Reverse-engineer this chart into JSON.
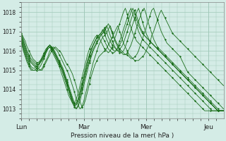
{
  "title": "Pression niveau de la mer( hPa )",
  "bg_color": "#d4ece6",
  "grid_color": "#a0c8b8",
  "line_color": "#1a6e1a",
  "ymin": 1012.5,
  "ymax": 1018.5,
  "yticks": [
    1013,
    1014,
    1015,
    1016,
    1017,
    1018
  ],
  "xtick_labels": [
    "Lun",
    "Mar",
    "Mer",
    "Jeu"
  ],
  "xtick_pos": [
    0,
    33,
    66,
    99
  ],
  "n_points": 108,
  "series": [
    [
      1016.8,
      1016.5,
      1016.2,
      1015.9,
      1015.7,
      1015.5,
      1015.4,
      1015.3,
      1015.2,
      1015.1,
      1015.0,
      1015.0,
      1015.2,
      1015.4,
      1015.6,
      1015.8,
      1016.0,
      1016.1,
      1016.2,
      1016.1,
      1016.0,
      1015.9,
      1015.7,
      1015.5,
      1015.3,
      1015.2,
      1015.0,
      1014.8,
      1014.5,
      1014.2,
      1013.8,
      1013.4,
      1013.1,
      1013.2,
      1013.5,
      1013.9,
      1014.3,
      1014.7,
      1015.0,
      1015.3,
      1015.5,
      1015.7,
      1015.8,
      1015.9,
      1016.0,
      1016.1,
      1016.3,
      1016.5,
      1016.7,
      1016.9,
      1017.1,
      1017.3,
      1017.0,
      1016.7,
      1016.4,
      1016.2,
      1016.0,
      1015.8,
      1015.7,
      1015.6,
      1015.5,
      1015.5,
      1015.5,
      1015.6,
      1015.7,
      1015.8,
      1016.0,
      1016.2,
      1016.4,
      1016.8,
      1017.0,
      1017.3,
      1017.6,
      1017.9,
      1018.1,
      1017.9,
      1017.7,
      1017.5,
      1017.3,
      1017.1,
      1016.9,
      1016.8,
      1016.7,
      1016.6,
      1016.5,
      1016.4,
      1016.3,
      1016.2,
      1016.1,
      1016.0,
      1015.9,
      1015.8,
      1015.7,
      1015.6,
      1015.5,
      1015.4,
      1015.3,
      1015.2,
      1015.1,
      1015.0,
      1014.9,
      1014.8,
      1014.7,
      1014.6,
      1014.5,
      1014.4,
      1014.3,
      1014.2
    ],
    [
      1016.7,
      1016.3,
      1016.0,
      1015.7,
      1015.5,
      1015.4,
      1015.3,
      1015.2,
      1015.1,
      1015.0,
      1015.0,
      1015.1,
      1015.3,
      1015.5,
      1015.7,
      1016.0,
      1016.1,
      1016.2,
      1016.1,
      1016.0,
      1015.8,
      1015.6,
      1015.4,
      1015.2,
      1015.0,
      1014.8,
      1014.5,
      1014.2,
      1013.9,
      1013.5,
      1013.2,
      1013.0,
      1013.1,
      1013.4,
      1013.8,
      1014.2,
      1014.6,
      1015.0,
      1015.4,
      1015.7,
      1016.0,
      1016.3,
      1016.5,
      1016.7,
      1016.8,
      1016.9,
      1017.1,
      1017.3,
      1017.0,
      1016.7,
      1016.5,
      1016.3,
      1016.1,
      1016.0,
      1015.9,
      1015.8,
      1015.8,
      1015.7,
      1015.6,
      1015.6,
      1015.7,
      1015.8,
      1016.0,
      1016.3,
      1016.6,
      1016.9,
      1017.2,
      1017.5,
      1017.8,
      1018.1,
      1018.2,
      1017.9,
      1017.6,
      1017.3,
      1017.0,
      1016.8,
      1016.6,
      1016.4,
      1016.3,
      1016.2,
      1016.1,
      1016.0,
      1015.9,
      1015.8,
      1015.7,
      1015.5,
      1015.3,
      1015.1,
      1014.9,
      1014.8,
      1014.7,
      1014.6,
      1014.5,
      1014.4,
      1014.3,
      1014.2,
      1014.1,
      1014.0,
      1013.9,
      1013.8,
      1013.7,
      1013.6,
      1013.5,
      1013.4,
      1013.3,
      1013.2,
      1013.1,
      1013.0
    ],
    [
      1016.5,
      1016.1,
      1015.8,
      1015.5,
      1015.3,
      1015.1,
      1015.0,
      1015.0,
      1015.0,
      1015.1,
      1015.2,
      1015.4,
      1015.6,
      1015.9,
      1016.1,
      1016.2,
      1016.1,
      1016.0,
      1015.8,
      1015.6,
      1015.4,
      1015.2,
      1015.0,
      1014.7,
      1014.4,
      1014.1,
      1013.7,
      1013.4,
      1013.2,
      1013.0,
      1013.1,
      1013.4,
      1013.8,
      1014.2,
      1014.6,
      1015.0,
      1015.4,
      1015.7,
      1016.0,
      1016.2,
      1016.4,
      1016.6,
      1016.8,
      1016.9,
      1017.0,
      1017.2,
      1017.4,
      1017.2,
      1016.9,
      1016.7,
      1016.4,
      1016.2,
      1016.0,
      1015.9,
      1015.8,
      1015.8,
      1015.9,
      1016.1,
      1016.3,
      1016.6,
      1016.9,
      1017.2,
      1017.5,
      1017.8,
      1018.1,
      1018.2,
      1017.9,
      1017.5,
      1017.2,
      1016.9,
      1016.6,
      1016.4,
      1016.2,
      1016.1,
      1016.0,
      1015.9,
      1015.8,
      1015.7,
      1015.6,
      1015.5,
      1015.4,
      1015.3,
      1015.2,
      1015.1,
      1015.0,
      1014.9,
      1014.8,
      1014.7,
      1014.6,
      1014.5,
      1014.4,
      1014.3,
      1014.2,
      1014.1,
      1014.0,
      1013.9,
      1013.8,
      1013.7,
      1013.6,
      1013.5,
      1013.4,
      1013.3,
      1013.2,
      1013.1,
      1013.0,
      1012.9,
      1012.9,
      1012.9
    ],
    [
      1016.4,
      1016.0,
      1015.7,
      1015.4,
      1015.2,
      1015.0,
      1015.0,
      1015.0,
      1015.1,
      1015.2,
      1015.4,
      1015.6,
      1015.8,
      1016.0,
      1016.2,
      1016.3,
      1016.1,
      1015.9,
      1015.7,
      1015.5,
      1015.3,
      1015.1,
      1014.8,
      1014.5,
      1014.2,
      1013.9,
      1013.6,
      1013.3,
      1013.1,
      1013.0,
      1013.2,
      1013.6,
      1014.0,
      1014.4,
      1014.8,
      1015.2,
      1015.5,
      1015.8,
      1016.1,
      1016.3,
      1016.5,
      1016.7,
      1016.8,
      1016.9,
      1017.1,
      1017.3,
      1017.1,
      1016.8,
      1016.5,
      1016.3,
      1016.1,
      1016.0,
      1015.9,
      1015.9,
      1016.0,
      1016.2,
      1016.5,
      1016.8,
      1017.1,
      1017.4,
      1017.7,
      1018.0,
      1018.2,
      1017.9,
      1017.5,
      1017.2,
      1016.9,
      1016.7,
      1016.5,
      1016.4,
      1016.3,
      1016.2,
      1016.1,
      1016.0,
      1015.9,
      1015.8,
      1015.7,
      1015.6,
      1015.5,
      1015.4,
      1015.3,
      1015.2,
      1015.1,
      1015.0,
      1014.9,
      1014.8,
      1014.7,
      1014.6,
      1014.5,
      1014.4,
      1014.3,
      1014.2,
      1014.1,
      1014.0,
      1013.9,
      1013.8,
      1013.7,
      1013.6,
      1013.5,
      1013.4,
      1013.3,
      1013.2,
      1013.1,
      1013.0,
      1012.9,
      1012.9,
      1012.9,
      1012.9
    ],
    [
      1016.8,
      1016.6,
      1016.3,
      1016.0,
      1015.8,
      1015.6,
      1015.5,
      1015.4,
      1015.3,
      1015.3,
      1015.4,
      1015.5,
      1015.7,
      1015.9,
      1016.1,
      1016.2,
      1016.2,
      1016.1,
      1015.9,
      1015.7,
      1015.5,
      1015.3,
      1015.1,
      1014.8,
      1014.5,
      1014.2,
      1013.9,
      1013.6,
      1013.3,
      1013.2,
      1013.4,
      1013.7,
      1014.1,
      1014.5,
      1014.9,
      1015.3,
      1015.7,
      1016.0,
      1016.3,
      1016.5,
      1016.7,
      1016.8,
      1016.9,
      1017.0,
      1017.2,
      1017.0,
      1016.7,
      1016.5,
      1016.3,
      1016.2,
      1016.1,
      1016.0,
      1016.1,
      1016.2,
      1016.4,
      1016.7,
      1017.0,
      1017.3,
      1017.6,
      1017.9,
      1018.1,
      1017.8,
      1017.5,
      1017.2,
      1017.0,
      1016.8,
      1016.7,
      1016.6,
      1016.5,
      1016.4,
      1016.3,
      1016.2,
      1016.1,
      1016.0,
      1015.9,
      1015.8,
      1015.7,
      1015.6,
      1015.5,
      1015.4,
      1015.3,
      1015.2,
      1015.1,
      1015.0,
      1014.9,
      1014.8,
      1014.7,
      1014.6,
      1014.5,
      1014.4,
      1014.3,
      1014.2,
      1014.1,
      1014.0,
      1013.9,
      1013.8,
      1013.7,
      1013.6,
      1013.5,
      1013.4,
      1013.3,
      1013.2,
      1013.1,
      1013.0,
      1012.9,
      1012.9,
      1012.9,
      1012.9
    ],
    [
      1016.9,
      1016.7,
      1016.5,
      1016.2,
      1016.0,
      1015.8,
      1015.6,
      1015.5,
      1015.4,
      1015.4,
      1015.5,
      1015.6,
      1015.8,
      1016.0,
      1016.2,
      1016.3,
      1016.2,
      1016.0,
      1015.8,
      1015.6,
      1015.4,
      1015.2,
      1015.0,
      1014.7,
      1014.4,
      1014.1,
      1013.8,
      1013.5,
      1013.3,
      1013.3,
      1013.5,
      1013.9,
      1014.3,
      1014.7,
      1015.1,
      1015.5,
      1015.8,
      1016.1,
      1016.3,
      1016.5,
      1016.7,
      1016.8,
      1016.9,
      1017.1,
      1016.9,
      1016.6,
      1016.4,
      1016.2,
      1016.1,
      1016.0,
      1016.0,
      1016.1,
      1016.3,
      1016.5,
      1016.8,
      1017.1,
      1017.4,
      1017.7,
      1018.0,
      1018.2,
      1017.9,
      1017.6,
      1017.3,
      1017.1,
      1016.9,
      1016.8,
      1016.7,
      1016.6,
      1016.5,
      1016.4,
      1016.3,
      1016.2,
      1016.1,
      1016.0,
      1015.9,
      1015.8,
      1015.7,
      1015.6,
      1015.5,
      1015.4,
      1015.3,
      1015.2,
      1015.1,
      1015.0,
      1014.9,
      1014.8,
      1014.7,
      1014.6,
      1014.5,
      1014.4,
      1014.3,
      1014.2,
      1014.1,
      1014.0,
      1013.9,
      1013.8,
      1013.7,
      1013.6,
      1013.5,
      1013.4,
      1013.3,
      1013.2,
      1013.1,
      1013.0,
      1012.9,
      1012.9,
      1012.9,
      1012.9
    ],
    [
      1016.7,
      1016.4,
      1016.1,
      1015.8,
      1015.6,
      1015.4,
      1015.3,
      1015.2,
      1015.2,
      1015.3,
      1015.4,
      1015.6,
      1015.8,
      1016.0,
      1016.2,
      1016.3,
      1016.2,
      1016.0,
      1015.8,
      1015.6,
      1015.4,
      1015.1,
      1014.9,
      1014.6,
      1014.3,
      1014.0,
      1013.7,
      1013.4,
      1013.2,
      1013.2,
      1013.5,
      1013.9,
      1014.3,
      1014.7,
      1015.1,
      1015.5,
      1015.8,
      1016.1,
      1016.3,
      1016.5,
      1016.7,
      1016.8,
      1016.9,
      1016.7,
      1016.5,
      1016.3,
      1016.1,
      1016.0,
      1015.9,
      1015.9,
      1016.0,
      1016.2,
      1016.5,
      1016.8,
      1017.1,
      1017.4,
      1017.7,
      1018.0,
      1018.2,
      1017.9,
      1017.6,
      1017.3,
      1017.0,
      1016.8,
      1016.6,
      1016.5,
      1016.4,
      1016.3,
      1016.2,
      1016.1,
      1016.0,
      1015.9,
      1015.8,
      1015.7,
      1015.6,
      1015.5,
      1015.4,
      1015.3,
      1015.2,
      1015.1,
      1015.0,
      1014.9,
      1014.8,
      1014.7,
      1014.6,
      1014.5,
      1014.4,
      1014.3,
      1014.2,
      1014.1,
      1014.0,
      1013.9,
      1013.8,
      1013.7,
      1013.6,
      1013.5,
      1013.4,
      1013.3,
      1013.2,
      1013.1,
      1013.0,
      1012.9,
      1012.9,
      1012.9,
      1012.9,
      1012.9,
      1012.9,
      1012.9
    ],
    [
      1016.6,
      1016.2,
      1015.9,
      1015.6,
      1015.4,
      1015.2,
      1015.1,
      1015.1,
      1015.2,
      1015.3,
      1015.5,
      1015.7,
      1015.9,
      1016.1,
      1016.2,
      1016.2,
      1016.0,
      1015.8,
      1015.6,
      1015.4,
      1015.2,
      1014.9,
      1014.6,
      1014.3,
      1014.0,
      1013.7,
      1013.5,
      1013.3,
      1013.3,
      1013.5,
      1013.8,
      1014.2,
      1014.6,
      1015.0,
      1015.4,
      1015.8,
      1016.1,
      1016.3,
      1016.5,
      1016.7,
      1016.8,
      1016.7,
      1016.5,
      1016.3,
      1016.1,
      1016.0,
      1015.9,
      1016.0,
      1016.2,
      1016.5,
      1016.8,
      1017.1,
      1017.4,
      1017.7,
      1018.0,
      1018.2,
      1017.9,
      1017.5,
      1017.2,
      1016.9,
      1016.7,
      1016.5,
      1016.4,
      1016.3,
      1016.2,
      1016.1,
      1016.0,
      1015.9,
      1015.8,
      1015.7,
      1015.6,
      1015.5,
      1015.4,
      1015.3,
      1015.2,
      1015.1,
      1015.0,
      1014.9,
      1014.8,
      1014.7,
      1014.6,
      1014.5,
      1014.4,
      1014.3,
      1014.2,
      1014.1,
      1014.0,
      1013.9,
      1013.8,
      1013.7,
      1013.6,
      1013.5,
      1013.4,
      1013.3,
      1013.2,
      1013.1,
      1013.0,
      1012.9,
      1012.9,
      1012.9,
      1012.9,
      1012.9,
      1012.9,
      1012.9,
      1012.9,
      1012.9,
      1012.9,
      1012.9
    ]
  ]
}
